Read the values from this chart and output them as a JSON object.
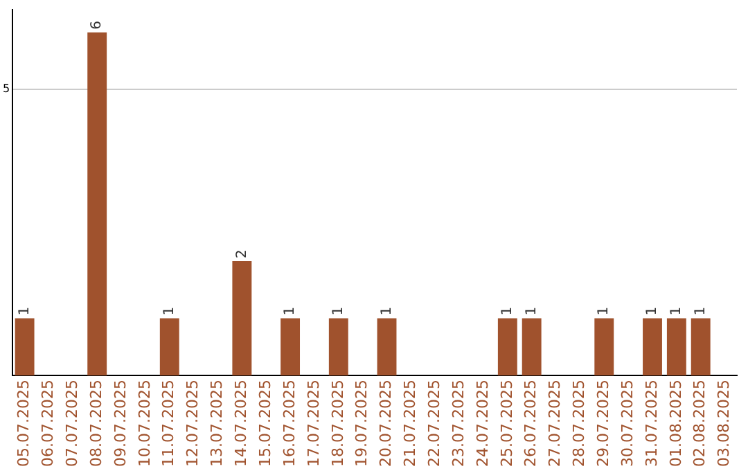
{
  "chart_data": {
    "type": "bar",
    "categories": [
      "05.07.2025",
      "06.07.2025",
      "07.07.2025",
      "08.07.2025",
      "09.07.2025",
      "10.07.2025",
      "11.07.2025",
      "12.07.2025",
      "13.07.2025",
      "14.07.2025",
      "15.07.2025",
      "16.07.2025",
      "17.07.2025",
      "18.07.2025",
      "19.07.2025",
      "20.07.2025",
      "21.07.2025",
      "22.07.2025",
      "23.07.2025",
      "24.07.2025",
      "25.07.2025",
      "26.07.2025",
      "27.07.2025",
      "28.07.2025",
      "29.07.2025",
      "30.07.2025",
      "31.07.2025",
      "01.08.2025",
      "02.08.2025",
      "03.08.2025"
    ],
    "values": [
      1,
      0,
      0,
      6,
      0,
      0,
      1,
      0,
      0,
      2,
      0,
      1,
      0,
      1,
      0,
      1,
      0,
      0,
      0,
      0,
      1,
      1,
      0,
      0,
      1,
      0,
      1,
      1,
      1,
      0
    ],
    "value_labels": [
      "1",
      null,
      null,
      "6",
      null,
      null,
      "1",
      null,
      null,
      "2",
      null,
      "1",
      null,
      "1",
      null,
      "1",
      null,
      null,
      null,
      null,
      "1",
      "1",
      null,
      null,
      "1",
      null,
      "1",
      "1",
      "1",
      null
    ],
    "color": "#a0522d",
    "ylim": [
      0,
      6.4
    ],
    "yticks": [
      5
    ],
    "grid": "y",
    "legend": false
  }
}
